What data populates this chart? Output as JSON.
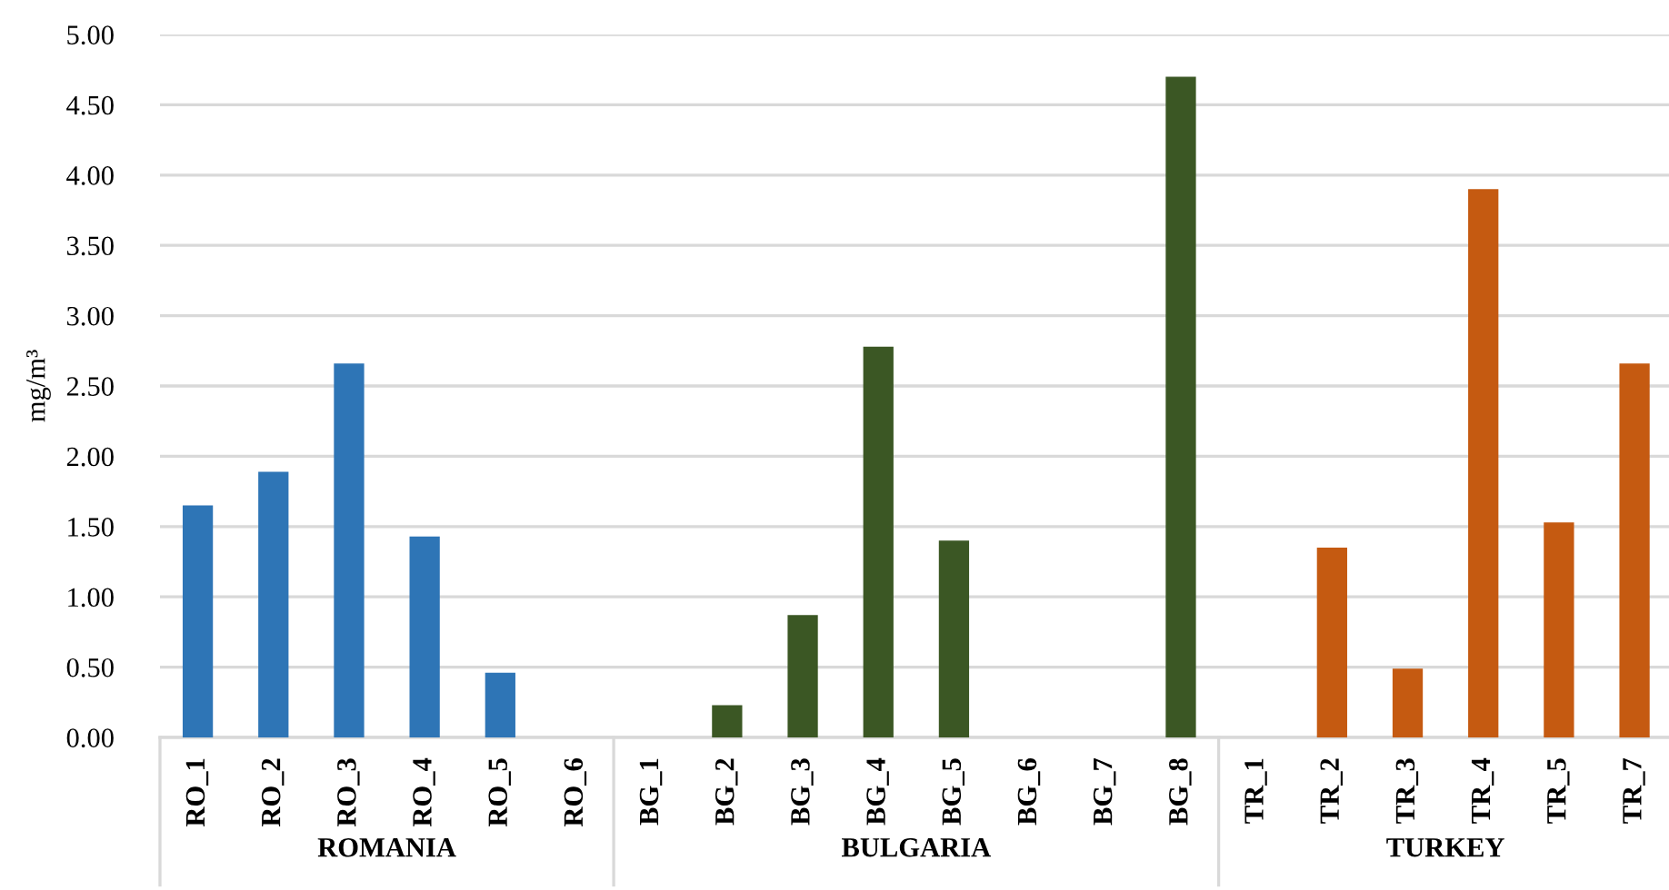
{
  "chart_data": {
    "type": "bar",
    "ylabel": "mg/m³",
    "categories": [
      "RO_1",
      "RO_2",
      "RO_3",
      "RO_4",
      "RO_5",
      "RO_6",
      "BG_1",
      "BG_2",
      "BG_3",
      "BG_4",
      "BG_5",
      "BG_6",
      "BG_7",
      "BG_8",
      "TR_1",
      "TR_2",
      "TR_3",
      "TR_4",
      "TR_5",
      "TR_7"
    ],
    "series": [
      {
        "color": "#2e75b6",
        "values": [
          1.65,
          1.89,
          2.66,
          1.43,
          0.46,
          0,
          null,
          null,
          null,
          null,
          null,
          null,
          null,
          null,
          null,
          null,
          null,
          null,
          null,
          null
        ]
      },
      {
        "color": "#3b5724",
        "values": [
          null,
          null,
          null,
          null,
          null,
          null,
          0,
          0.23,
          0.87,
          2.78,
          1.4,
          0,
          0,
          4.7,
          null,
          null,
          null,
          null,
          null,
          null
        ]
      },
      {
        "color": "#c55a11",
        "values": [
          null,
          null,
          null,
          null,
          null,
          null,
          null,
          null,
          null,
          null,
          null,
          null,
          null,
          null,
          0,
          1.35,
          0.49,
          3.9,
          1.53,
          2.66
        ]
      }
    ],
    "ylim": [
      0,
      5
    ],
    "yticks": [
      {
        "value": 0,
        "label": "0.00"
      },
      {
        "value": 0.5,
        "label": "0.50"
      },
      {
        "value": 1,
        "label": "1.00"
      },
      {
        "value": 1.5,
        "label": "1.50"
      },
      {
        "value": 2,
        "label": "2.00"
      },
      {
        "value": 2.5,
        "label": "2.50"
      },
      {
        "value": 3,
        "label": "3.00"
      },
      {
        "value": 3.5,
        "label": "3.50"
      },
      {
        "value": 4,
        "label": "4.00"
      },
      {
        "value": 4.5,
        "label": "4.50"
      },
      {
        "value": 5,
        "label": "5.00"
      }
    ],
    "annotations": [
      "ROMANIA",
      "BULGARIA",
      "TURKEY"
    ],
    "grid": "y",
    "legend": false
  }
}
